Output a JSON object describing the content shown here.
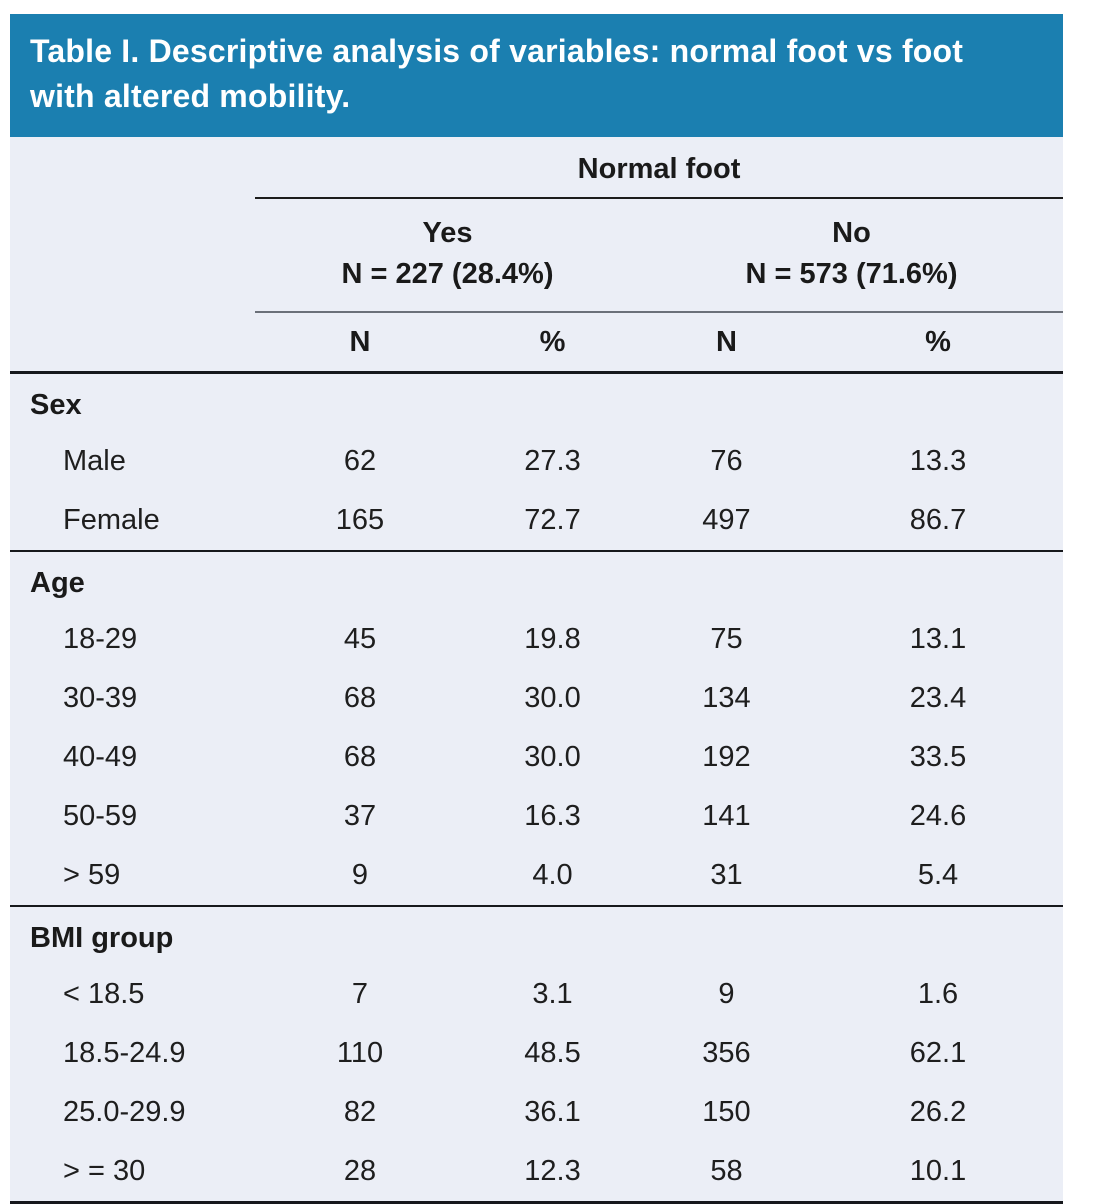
{
  "title": "Table I. Descriptive analysis of variables: normal foot vs foot with altered mobility.",
  "colors": {
    "title_bar_bg": "#1b7fb0",
    "title_text": "#ffffff",
    "table_bg": "#ebeef6",
    "rule_dark": "#16181c",
    "rule_gray": "#6b7079"
  },
  "header": {
    "group_label": "Normal foot",
    "subgroups": [
      {
        "label": "Yes",
        "n_label": "N = 227 (28.4%)"
      },
      {
        "label": "No",
        "n_label": "N = 573 (71.6%)"
      }
    ],
    "columns": [
      "N",
      "%",
      "N",
      "%"
    ]
  },
  "sections": [
    {
      "label": "Sex",
      "rows": [
        {
          "label": "Male",
          "values": [
            "62",
            "27.3",
            "76",
            "13.3"
          ]
        },
        {
          "label": "Female",
          "values": [
            "165",
            "72.7",
            "497",
            "86.7"
          ]
        }
      ]
    },
    {
      "label": "Age",
      "rows": [
        {
          "label": "18-29",
          "values": [
            "45",
            "19.8",
            "75",
            "13.1"
          ]
        },
        {
          "label": "30-39",
          "values": [
            "68",
            "30.0",
            "134",
            "23.4"
          ]
        },
        {
          "label": "40-49",
          "values": [
            "68",
            "30.0",
            "192",
            "33.5"
          ]
        },
        {
          "label": "50-59",
          "values": [
            "37",
            "16.3",
            "141",
            "24.6"
          ]
        },
        {
          "label": "> 59",
          "values": [
            "9",
            "4.0",
            "31",
            "5.4"
          ]
        }
      ]
    },
    {
      "label": "BMI group",
      "rows": [
        {
          "label": "< 18.5",
          "values": [
            "7",
            "3.1",
            "9",
            "1.6"
          ]
        },
        {
          "label": "18.5-24.9",
          "values": [
            "110",
            "48.5",
            "356",
            "62.1"
          ]
        },
        {
          "label": "25.0-29.9",
          "values": [
            "82",
            "36.1",
            "150",
            "26.2"
          ]
        },
        {
          "label": "> = 30",
          "values": [
            "28",
            "12.3",
            "58",
            "10.1"
          ]
        }
      ]
    }
  ]
}
